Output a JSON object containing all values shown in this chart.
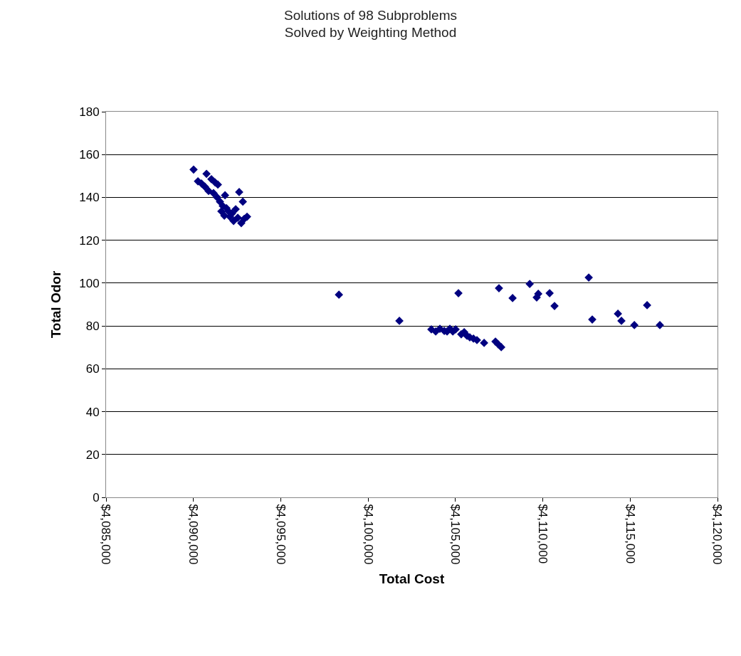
{
  "chart_data": {
    "type": "scatter",
    "title": "Solutions of 98 Subproblems\nSolved by Weighting Method",
    "xlabel": "Total Cost",
    "ylabel": "Total Odor",
    "marker": "diamond",
    "grid": "y",
    "color": "#000080",
    "x": [
      4090010,
      4090260,
      4090460,
      4090750,
      4090660,
      4090870,
      4091030,
      4091240,
      4091400,
      4091150,
      4091360,
      4091520,
      4091680,
      4091810,
      4091890,
      4092010,
      4092090,
      4092210,
      4092300,
      4092420,
      4092540,
      4092620,
      4092740,
      4092830,
      4092910,
      4093070,
      4091600,
      4091770,
      4098330,
      4101790,
      4103620,
      4103870,
      4104110,
      4104360,
      4104520,
      4104680,
      4104850,
      4105010,
      4105330,
      4105500,
      4105660,
      4105820,
      4106030,
      4106230,
      4106640,
      4107290,
      4107450,
      4107620,
      4105170,
      4107490,
      4108270,
      4109250,
      4109650,
      4109740,
      4110390,
      4110670,
      4112630,
      4112830,
      4114300,
      4114500,
      4115240,
      4115970,
      4116700
    ],
    "values": [
      153,
      147.5,
      146.5,
      151,
      145,
      143,
      148.5,
      147,
      146,
      142,
      140,
      138,
      136,
      141,
      135,
      133.5,
      131,
      132.5,
      129,
      134.5,
      130.5,
      142.5,
      128,
      138,
      130,
      131,
      133.5,
      131.5,
      94.6,
      82.4,
      78.4,
      77.4,
      78.7,
      77.7,
      77.4,
      78.7,
      77.4,
      78.4,
      76.1,
      77.1,
      75.4,
      74.7,
      74.1,
      73.4,
      72.1,
      72.7,
      71.4,
      70.1,
      95.3,
      97.6,
      93,
      99.6,
      93.3,
      95,
      95.3,
      89.3,
      102.6,
      83,
      85.7,
      82.4,
      80.4,
      89.7,
      80.4
    ],
    "xlim": [
      4085000,
      4120000
    ],
    "xticks": [
      {
        "value": 4085000,
        "label": "$4,085,000"
      },
      {
        "value": 4090000,
        "label": "$4,090,000"
      },
      {
        "value": 4095000,
        "label": "$4,095,000"
      },
      {
        "value": 4100000,
        "label": "$4,100,000"
      },
      {
        "value": 4105000,
        "label": "$4,105,000"
      },
      {
        "value": 4110000,
        "label": "$4,110,000"
      },
      {
        "value": 4115000,
        "label": "$4,115,000"
      },
      {
        "value": 4120000,
        "label": "$4,120,000"
      }
    ],
    "ylim": [
      0,
      180
    ],
    "yticks": [
      0,
      20,
      40,
      60,
      80,
      100,
      120,
      140,
      160,
      180
    ]
  }
}
